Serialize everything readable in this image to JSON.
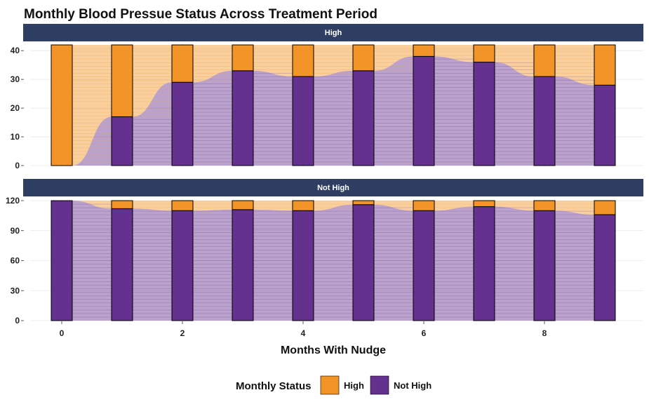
{
  "chart_data": {
    "type": "bar",
    "title": "Monthly Blood Pressue Status Across Treatment Period",
    "xlabel": "Months With Nudge",
    "ylabel": "",
    "x": [
      0,
      1,
      2,
      3,
      4,
      5,
      6,
      7,
      8,
      9
    ],
    "x_ticks": [
      "0",
      "2",
      "4",
      "6",
      "8"
    ],
    "colors": {
      "High": "#F39429",
      "Not High": "#65318E"
    },
    "legend": {
      "title": "Monthly Status",
      "position": "bottom",
      "entries": [
        "High",
        "Not High"
      ]
    },
    "grid": true,
    "facets": [
      {
        "label": "High",
        "ylim": [
          0,
          42
        ],
        "y_ticks": [
          "0",
          "10",
          "20",
          "30",
          "40"
        ],
        "series": [
          {
            "name": "High",
            "values": [
              42,
              25,
              13,
              9,
              11,
              9,
              4,
              6,
              11,
              14
            ]
          },
          {
            "name": "Not High",
            "values": [
              0,
              17,
              29,
              33,
              31,
              33,
              38,
              36,
              31,
              28
            ]
          }
        ]
      },
      {
        "label": "Not High",
        "ylim": [
          0,
          120
        ],
        "y_ticks": [
          "0",
          "30",
          "60",
          "90",
          "120"
        ],
        "series": [
          {
            "name": "High",
            "values": [
              0,
              8,
              10,
              9,
              10,
              4,
              10,
              6,
              10,
              14
            ]
          },
          {
            "name": "Not High",
            "values": [
              120,
              112,
              110,
              111,
              110,
              116,
              110,
              114,
              110,
              106
            ]
          }
        ]
      }
    ]
  }
}
